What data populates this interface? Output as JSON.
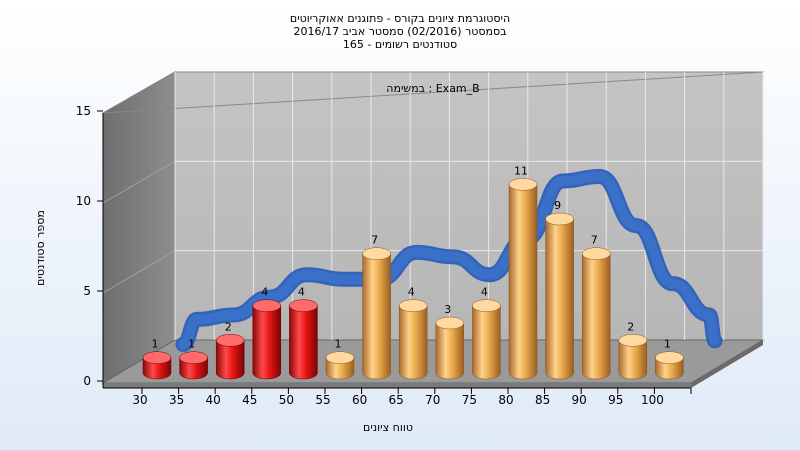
{
  "title_lines": [
    "היסטוגרמת ציונים בקורס - פתוגנים אאוקריוטים",
    "בסמסטר (02/2016) סמסטר אביב 2016/17",
    "סטודנטים רשומים - 165"
  ],
  "chart_data": {
    "type": "bar",
    "title": "היסטוגרמת ציונים בקורס - פתוגנים אאוקריוטים",
    "subtitle": "בסמסטר (02/2016) סמסטר אביב 2016/17",
    "annotation": "במשימה : Exam_B",
    "xlabel": "טווח ציונים",
    "ylabel": "מספר סטודנטים",
    "categories": [
      "30",
      "35",
      "40",
      "45",
      "50",
      "55",
      "60",
      "65",
      "70",
      "75",
      "80",
      "85",
      "90",
      "95",
      "100"
    ],
    "values": [
      1,
      1,
      2,
      4,
      4,
      1,
      7,
      4,
      3,
      4,
      11,
      9,
      7,
      2,
      1
    ],
    "bar_colors": [
      "#e41414",
      "#e41414",
      "#e41414",
      "#e41414",
      "#e41414",
      "#e8a84a",
      "#e8a84a",
      "#e8a84a",
      "#e8a84a",
      "#e8a84a",
      "#e8a84a",
      "#e8a84a",
      "#e8a84a",
      "#e8a84a",
      "#e8a84a"
    ],
    "yticks": [
      "0",
      "5",
      "10",
      "15"
    ],
    "ylim": [
      0,
      15
    ],
    "curve_color": "#3a70c8",
    "grid": true,
    "legend": "none"
  }
}
